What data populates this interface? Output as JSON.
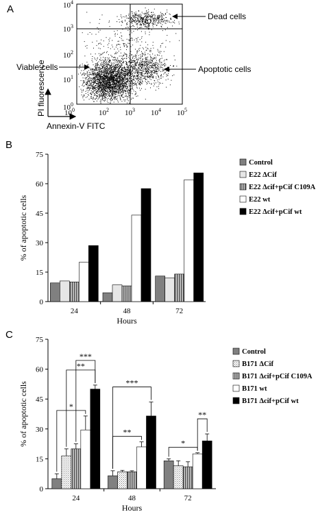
{
  "panels": {
    "a": {
      "letter": "A",
      "chart_data": {
        "type": "scatter",
        "x_ticks": [
          "10^0",
          "10^2",
          "10^3",
          "10^4",
          "10^5"
        ],
        "y_ticks": [
          "10^0",
          "10^1",
          "10^2",
          "10^3",
          "10^4"
        ],
        "xlabel": "Annexin-V FITC",
        "ylabel": "PI fluorescence",
        "annotations": [
          "Dead cells",
          "Viable cells",
          "Apoptotic cells"
        ],
        "scale": "log",
        "quadrant_gates": true
      }
    },
    "b": {
      "letter": "B",
      "chart_data": {
        "type": "bar",
        "categories": [
          "24",
          "48",
          "72"
        ],
        "xlabel": "Hours",
        "ylabel": "% of apoptotic cells",
        "ylim": [
          0,
          75
        ],
        "yticks": [
          "0",
          "15",
          "30",
          "45",
          "60",
          "75"
        ],
        "series": [
          {
            "name": "Control",
            "values": [
              9.5,
              4.5,
              13
            ],
            "color": "#808080",
            "pattern": "solid"
          },
          {
            "name": "E22 ΔCif",
            "values": [
              10.5,
              8.5,
              12
            ],
            "color": "#e6e6e6",
            "pattern": "solid"
          },
          {
            "name": "E22 Δcif+pCif C109A",
            "values": [
              10,
              8,
              14
            ],
            "color": "#9a9a9a",
            "pattern": "vstripes"
          },
          {
            "name": "E22 wt",
            "values": [
              20,
              44,
              62
            ],
            "color": "#ffffff",
            "pattern": "solid"
          },
          {
            "name": "E22 Δcif+pCif wt",
            "values": [
              28.5,
              57.5,
              65.5
            ],
            "color": "#000000",
            "pattern": "solid"
          }
        ]
      }
    },
    "c": {
      "letter": "C",
      "chart_data": {
        "type": "bar",
        "categories": [
          "24",
          "48",
          "72"
        ],
        "xlabel": "Hours",
        "ylabel": "% of apoptotic cells",
        "ylim": [
          0,
          75
        ],
        "yticks": [
          "0",
          "15",
          "30",
          "45",
          "60",
          "75"
        ],
        "series": [
          {
            "name": "Control",
            "values": [
              5,
              6.5,
              14
            ],
            "errors": [
              2.5,
              2.5,
              1
            ],
            "color": "#808080",
            "pattern": "solid"
          },
          {
            "name": "B171 ΔCif",
            "values": [
              16.5,
              8.5,
              11.5
            ],
            "errors": [
              3.5,
              0.7,
              2.5
            ],
            "color": "#f0f0f0",
            "pattern": "dots"
          },
          {
            "name": "B171 Δcif+pCif C109A",
            "values": [
              20,
              8.5,
              11
            ],
            "errors": [
              2.5,
              0.5,
              2.5
            ],
            "color": "#9a9a9a",
            "pattern": "vstripes"
          },
          {
            "name": "B171 wt",
            "values": [
              29.5,
              21,
              17.5
            ],
            "errors": [
              7,
              2.5,
              0.5
            ],
            "color": "#ffffff",
            "pattern": "solid"
          },
          {
            "name": "B171 Δcif+pCif wt",
            "values": [
              50,
              36.5,
              24
            ],
            "errors": [
              2,
              7,
              3.5
            ],
            "color": "#000000",
            "pattern": "solid"
          }
        ],
        "significance": [
          {
            "group": "24",
            "from": "Control",
            "to": "B171 wt",
            "label": "*"
          },
          {
            "group": "24",
            "from": "B171 ΔCif",
            "to": "B171 Δcif+pCif wt",
            "label": "**"
          },
          {
            "group": "24",
            "from": "B171 Δcif+pCif C109A",
            "to": "B171 Δcif+pCif wt",
            "label": "***"
          },
          {
            "group": "48",
            "from": "Control",
            "to": "B171 wt",
            "label": "**"
          },
          {
            "group": "48",
            "from": "Control",
            "to": "B171 Δcif+pCif wt",
            "label": "***"
          },
          {
            "group": "72",
            "from": "Control",
            "to": "B171 wt",
            "label": "*"
          },
          {
            "group": "72",
            "from": "B171 wt",
            "to": "B171 Δcif+pCif wt",
            "label": "**"
          }
        ]
      }
    }
  }
}
